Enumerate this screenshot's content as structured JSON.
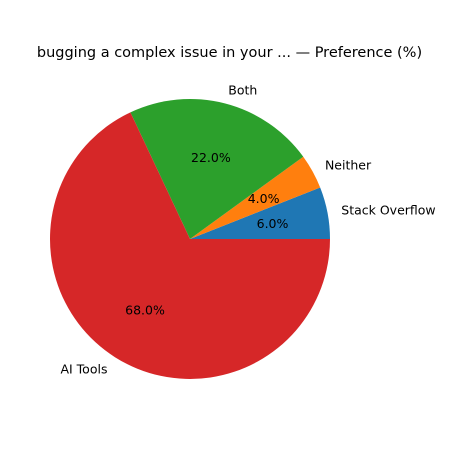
{
  "chart_data": {
    "type": "pie",
    "title": "bugging a complex issue in your ... — Preference (%)",
    "categories": [
      "Stack Overflow",
      "Neither",
      "Both",
      "AI Tools"
    ],
    "values": [
      6.0,
      4.0,
      22.0,
      68.0
    ],
    "percent_labels": [
      "6.0%",
      "4.0%",
      "22.0%",
      "68.0%"
    ],
    "colors": [
      "#1f77b4",
      "#ff7f0e",
      "#2ca02c",
      "#d62728"
    ],
    "start_angle_deg": 0,
    "direction": "counterclockwise",
    "legend": "none"
  }
}
